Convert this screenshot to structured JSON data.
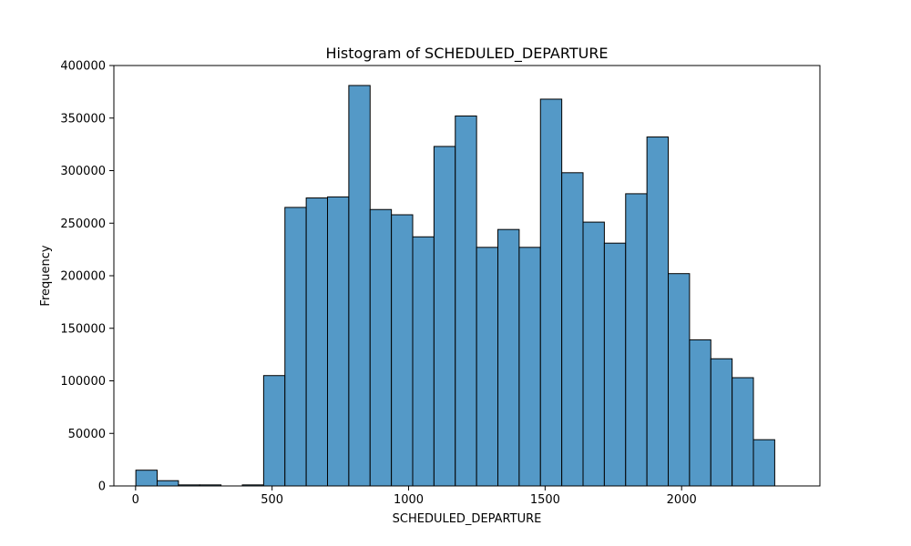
{
  "chart_data": {
    "type": "bar",
    "title": "Histogram of SCHEDULED_DEPARTURE",
    "xlabel": "SCHEDULED_DEPARTURE",
    "ylabel": "Frequency",
    "xlim": [
      -79.5,
      2506.5
    ],
    "ylim": [
      0,
      400000
    ],
    "x_ticks": [
      0,
      500,
      1000,
      1500,
      2000
    ],
    "y_ticks": [
      0,
      50000,
      100000,
      150000,
      200000,
      250000,
      300000,
      350000,
      400000
    ],
    "grid": false,
    "bar_color": "#5499c7",
    "edge_color": "#000000",
    "bins": [
      {
        "x0": 1,
        "x1": 79,
        "value": 15000
      },
      {
        "x0": 79,
        "x1": 157,
        "value": 5000
      },
      {
        "x0": 157,
        "x1": 235,
        "value": 1000
      },
      {
        "x0": 235,
        "x1": 313,
        "value": 1000
      },
      {
        "x0": 313,
        "x1": 391,
        "value": 0
      },
      {
        "x0": 391,
        "x1": 469,
        "value": 1000
      },
      {
        "x0": 469,
        "x1": 547,
        "value": 105000
      },
      {
        "x0": 547,
        "x1": 625,
        "value": 265000
      },
      {
        "x0": 625,
        "x1": 703,
        "value": 274000
      },
      {
        "x0": 703,
        "x1": 781,
        "value": 275000
      },
      {
        "x0": 781,
        "x1": 859,
        "value": 381000
      },
      {
        "x0": 859,
        "x1": 937,
        "value": 263000
      },
      {
        "x0": 937,
        "x1": 1015,
        "value": 258000
      },
      {
        "x0": 1015,
        "x1": 1093,
        "value": 237000
      },
      {
        "x0": 1093,
        "x1": 1171,
        "value": 323000
      },
      {
        "x0": 1171,
        "x1": 1249,
        "value": 352000
      },
      {
        "x0": 1249,
        "x1": 1327,
        "value": 227000
      },
      {
        "x0": 1327,
        "x1": 1405,
        "value": 244000
      },
      {
        "x0": 1405,
        "x1": 1483,
        "value": 227000
      },
      {
        "x0": 1483,
        "x1": 1561,
        "value": 368000
      },
      {
        "x0": 1561,
        "x1": 1639,
        "value": 298000
      },
      {
        "x0": 1639,
        "x1": 1717,
        "value": 251000
      },
      {
        "x0": 1717,
        "x1": 1795,
        "value": 231000
      },
      {
        "x0": 1795,
        "x1": 1873,
        "value": 278000
      },
      {
        "x0": 1873,
        "x1": 1951,
        "value": 332000
      },
      {
        "x0": 1951,
        "x1": 2029,
        "value": 202000
      },
      {
        "x0": 2029,
        "x1": 2107,
        "value": 139000
      },
      {
        "x0": 2107,
        "x1": 2185,
        "value": 121000
      },
      {
        "x0": 2185,
        "x1": 2263,
        "value": 103000
      },
      {
        "x0": 2263,
        "x1": 2341,
        "value": 44000
      }
    ]
  }
}
